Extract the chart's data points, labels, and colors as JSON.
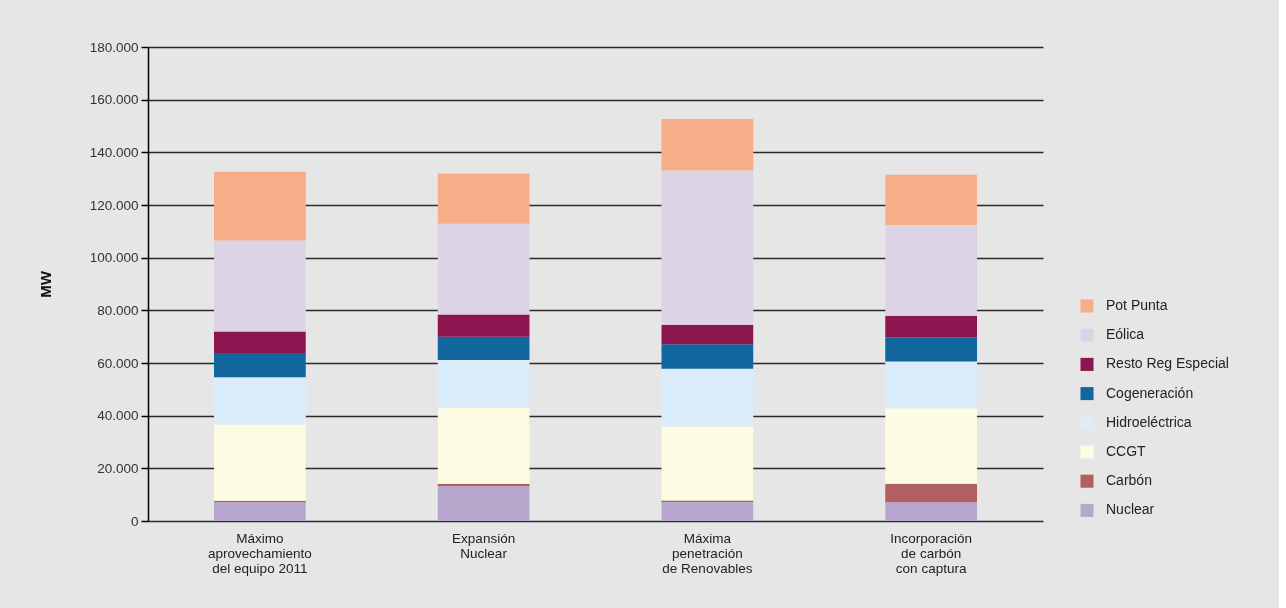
{
  "chart_data": {
    "type": "bar",
    "stacked": true,
    "ylabel": "MW",
    "categories": [
      "Máximo aprovechamiento del equipo 2011",
      "Expansión Nuclear",
      "Máxima penetración de Renovables",
      "Incorporación de carbón con captura"
    ],
    "series": [
      {
        "name": "Nuclear",
        "color": "#b7a7cc",
        "values": [
          7100,
          13300,
          7200,
          7100
        ]
      },
      {
        "name": "Carbón",
        "color": "#b05f63",
        "values": [
          600,
          800,
          600,
          7000
        ]
      },
      {
        "name": "CCGT",
        "color": "#fdfbe1",
        "values": [
          28900,
          28800,
          28100,
          28700
        ]
      },
      {
        "name": "Hidroeléctrica",
        "color": "#dbedfa",
        "values": [
          18000,
          18200,
          21900,
          17800
        ]
      },
      {
        "name": "Cogeneración",
        "color": "#11669e",
        "values": [
          9200,
          8900,
          9300,
          9200
        ]
      },
      {
        "name": "Resto Reg Especial",
        "color": "#8b1650",
        "values": [
          8200,
          8400,
          7400,
          8100
        ]
      },
      {
        "name": "Eólica",
        "color": "#dcd3e6",
        "values": [
          34500,
          34500,
          58600,
          34500
        ]
      },
      {
        "name": "Pot Punta",
        "color": "#f6ae88",
        "values": [
          26100,
          19100,
          19600,
          19100
        ]
      }
    ],
    "ylim": [
      0,
      180000
    ],
    "yticks": [
      0,
      {
        "value": 20000,
        "label": "20.000"
      },
      {
        "value": 40000,
        "label": "40.000"
      },
      {
        "value": 60000,
        "label": "60.000"
      },
      {
        "value": 80000,
        "label": "80.000"
      },
      {
        "value": 100000,
        "label": "100.000"
      },
      {
        "value": 120000,
        "label": "120.000"
      },
      {
        "value": 140000,
        "label": "140.000"
      },
      {
        "value": 160000,
        "label": "160.000"
      },
      {
        "value": 180000,
        "label": "180.000"
      }
    ],
    "grid": "y",
    "legend": "right"
  }
}
